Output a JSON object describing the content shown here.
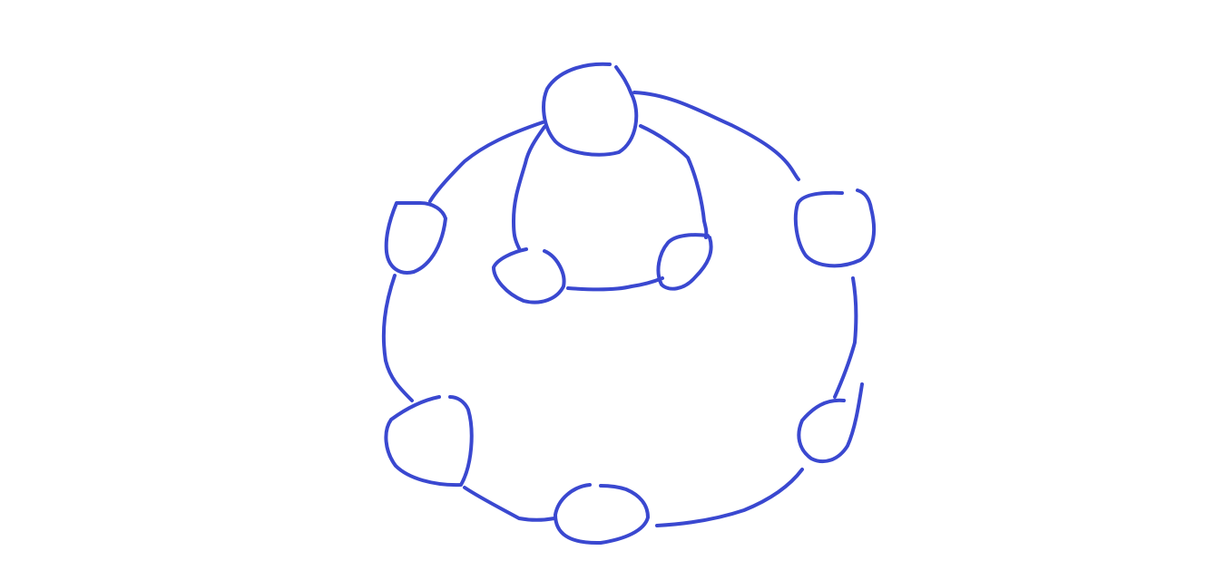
{
  "diagram": {
    "type": "hand-drawn-graph",
    "stroke_color": "#3a48d0",
    "background": "#ffffff",
    "nodes": [
      {
        "id": "top",
        "label": ""
      },
      {
        "id": "upper-left",
        "label": ""
      },
      {
        "id": "upper-right",
        "label": ""
      },
      {
        "id": "lower-left",
        "label": ""
      },
      {
        "id": "bottom",
        "label": ""
      },
      {
        "id": "lower-right",
        "label": ""
      },
      {
        "id": "inner-left",
        "label": ""
      },
      {
        "id": "inner-right",
        "label": ""
      }
    ],
    "edges": [
      {
        "from": "top",
        "to": "upper-right"
      },
      {
        "from": "top",
        "to": "upper-left"
      },
      {
        "from": "upper-left",
        "to": "lower-left"
      },
      {
        "from": "lower-left",
        "to": "bottom"
      },
      {
        "from": "bottom",
        "to": "lower-right"
      },
      {
        "from": "lower-right",
        "to": "upper-right"
      },
      {
        "from": "top",
        "to": "inner-left"
      },
      {
        "from": "top",
        "to": "inner-right"
      },
      {
        "from": "inner-left",
        "to": "inner-right"
      }
    ]
  }
}
